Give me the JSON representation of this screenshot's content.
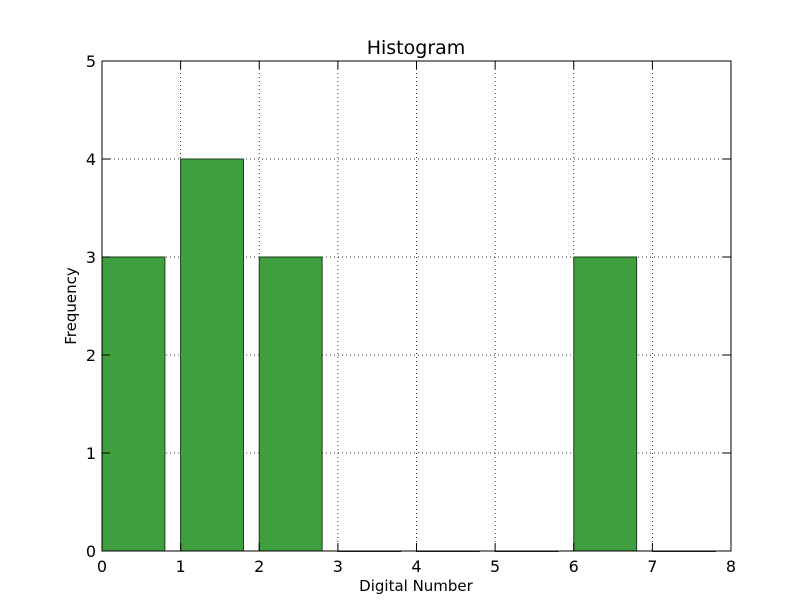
{
  "chart_data": {
    "type": "bar",
    "title": "Histogram",
    "xlabel": "Digital Number",
    "ylabel": "Frequency",
    "xlim": [
      0,
      8
    ],
    "ylim": [
      0,
      5
    ],
    "xticks": [
      0,
      1,
      2,
      3,
      4,
      5,
      6,
      7,
      8
    ],
    "yticks": [
      0,
      1,
      2,
      3,
      4,
      5
    ],
    "bin_width": 0.8,
    "bins": [
      {
        "x": 0,
        "value": 3
      },
      {
        "x": 1,
        "value": 4
      },
      {
        "x": 2,
        "value": 3
      },
      {
        "x": 3,
        "value": 0
      },
      {
        "x": 4,
        "value": 0
      },
      {
        "x": 5,
        "value": 0
      },
      {
        "x": 6,
        "value": 3
      },
      {
        "x": 7,
        "value": 0
      }
    ],
    "bar_color": "#3f9f3f",
    "bar_edge_color": "#1f3f1f",
    "grid": true,
    "grid_style": "dotted"
  }
}
